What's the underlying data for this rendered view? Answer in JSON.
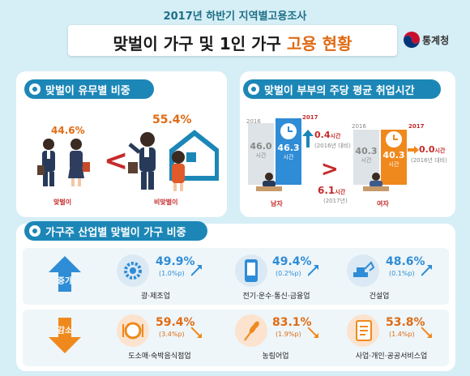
{
  "header": {
    "subtitle": "2017년 하반기 지역별고용조사",
    "title_main": "맞벌이 가구 및 1인 가구 ",
    "title_highlight": "고용 현황",
    "org_name": "통계청"
  },
  "section1": {
    "heading": "맞벌이 유무별 비중",
    "dual": {
      "label": "맞벌이",
      "pct": "44.6%"
    },
    "single": {
      "label": "비맞벌이",
      "pct": "55.4%"
    },
    "compare_symbol": "<"
  },
  "section2": {
    "heading": "맞벌이 부부의 주당 평균 취업시간",
    "male": {
      "label": "남자",
      "year_prev": "2016",
      "year_curr": "2017",
      "prev_hours": "46.0",
      "prev_unit": "시간",
      "curr_hours": "46.3",
      "curr_unit": "시간",
      "change": "0.4",
      "change_unit": "시간",
      "change_note": "(2016년 대비)"
    },
    "female": {
      "label": "여자",
      "year_prev": "2016",
      "year_curr": "2017",
      "prev_hours": "40.3",
      "prev_unit": "시간",
      "curr_hours": "40.3",
      "curr_unit": "시간",
      "change": "0.0",
      "change_unit": "시간",
      "change_note": "(2016년 대비)"
    },
    "gap_value": "6.1",
    "gap_unit": "시간",
    "gap_year": "(2017년)"
  },
  "section3": {
    "heading": "가구주 산업별 맞벌이 가구 비중",
    "increase_label": "증가",
    "decrease_label": "감소",
    "increase": [
      {
        "name": "광·제조업",
        "pct": "49.9%",
        "delta": "(1.0%p)",
        "icon": "gear-icon"
      },
      {
        "name": "전기·운수·통신·금융업",
        "pct": "49.4%",
        "delta": "(0.2%p)",
        "icon": "phone-icon"
      },
      {
        "name": "건설업",
        "pct": "48.6%",
        "delta": "(0.1%p)",
        "icon": "excavator-icon"
      }
    ],
    "decrease": [
      {
        "name": "도소매·숙박음식점업",
        "pct": "59.4%",
        "delta": "(3.4%p)",
        "icon": "dining-icon"
      },
      {
        "name": "농림어업",
        "pct": "83.1%",
        "delta": "(1.9%p)",
        "icon": "wheat-icon"
      },
      {
        "name": "사업·개인·공공서비스업",
        "pct": "53.8%",
        "delta": "(1.4%p)",
        "icon": "document-icon"
      }
    ]
  },
  "colors": {
    "accent_blue": "#1c87b7",
    "accent_orange": "#e06b14",
    "increase_blue": "#2f8cd6",
    "decrease_orange": "#f0891d"
  }
}
